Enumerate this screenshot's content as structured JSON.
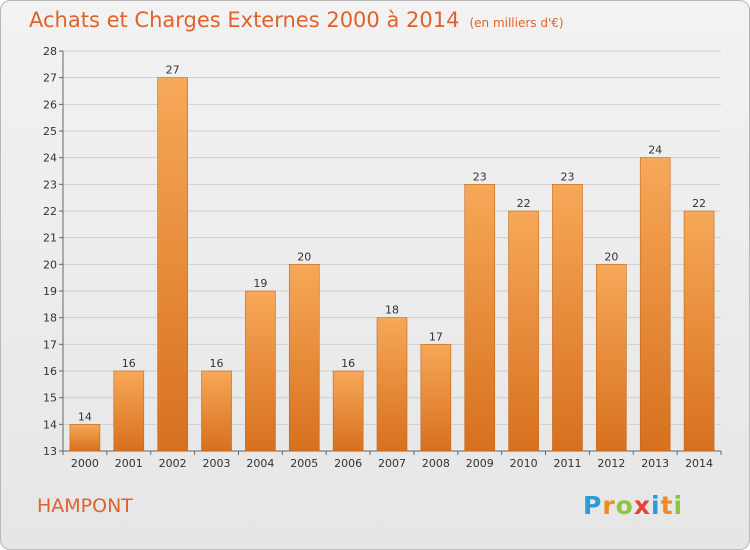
{
  "title": "Achats et Charges Externes 2000 à 2014",
  "unit_note": "(en milliers d'€)",
  "commune": "HAMPONT",
  "logo": {
    "letters": [
      "P",
      "r",
      "o",
      "x",
      "i",
      "t",
      "i"
    ],
    "colors": [
      "#2e9ad8",
      "#f28a1e",
      "#8cc63f",
      "#e8403a",
      "#2e9ad8",
      "#f28a1e",
      "#8cc63f"
    ]
  },
  "colors": {
    "bar_light": "#f6a858",
    "bar_dark": "#d7701e",
    "title": "#e0622a"
  },
  "chart_data": {
    "type": "bar",
    "categories": [
      "2000",
      "2001",
      "2002",
      "2003",
      "2004",
      "2005",
      "2006",
      "2007",
      "2008",
      "2009",
      "2010",
      "2011",
      "2012",
      "2013",
      "2014"
    ],
    "values": [
      14,
      16,
      27,
      16,
      19,
      20,
      16,
      18,
      17,
      23,
      22,
      23,
      20,
      24,
      22
    ],
    "data_labels": [
      "14",
      "16",
      "27",
      "16",
      "19",
      "20",
      "16",
      "18",
      "17",
      "23",
      "22",
      "23",
      "20",
      "24",
      "22"
    ],
    "y_ticks": [
      13,
      14,
      15,
      16,
      17,
      18,
      19,
      20,
      21,
      22,
      23,
      24,
      25,
      26,
      27,
      28
    ],
    "ylim": [
      13,
      28
    ],
    "grid": true
  }
}
